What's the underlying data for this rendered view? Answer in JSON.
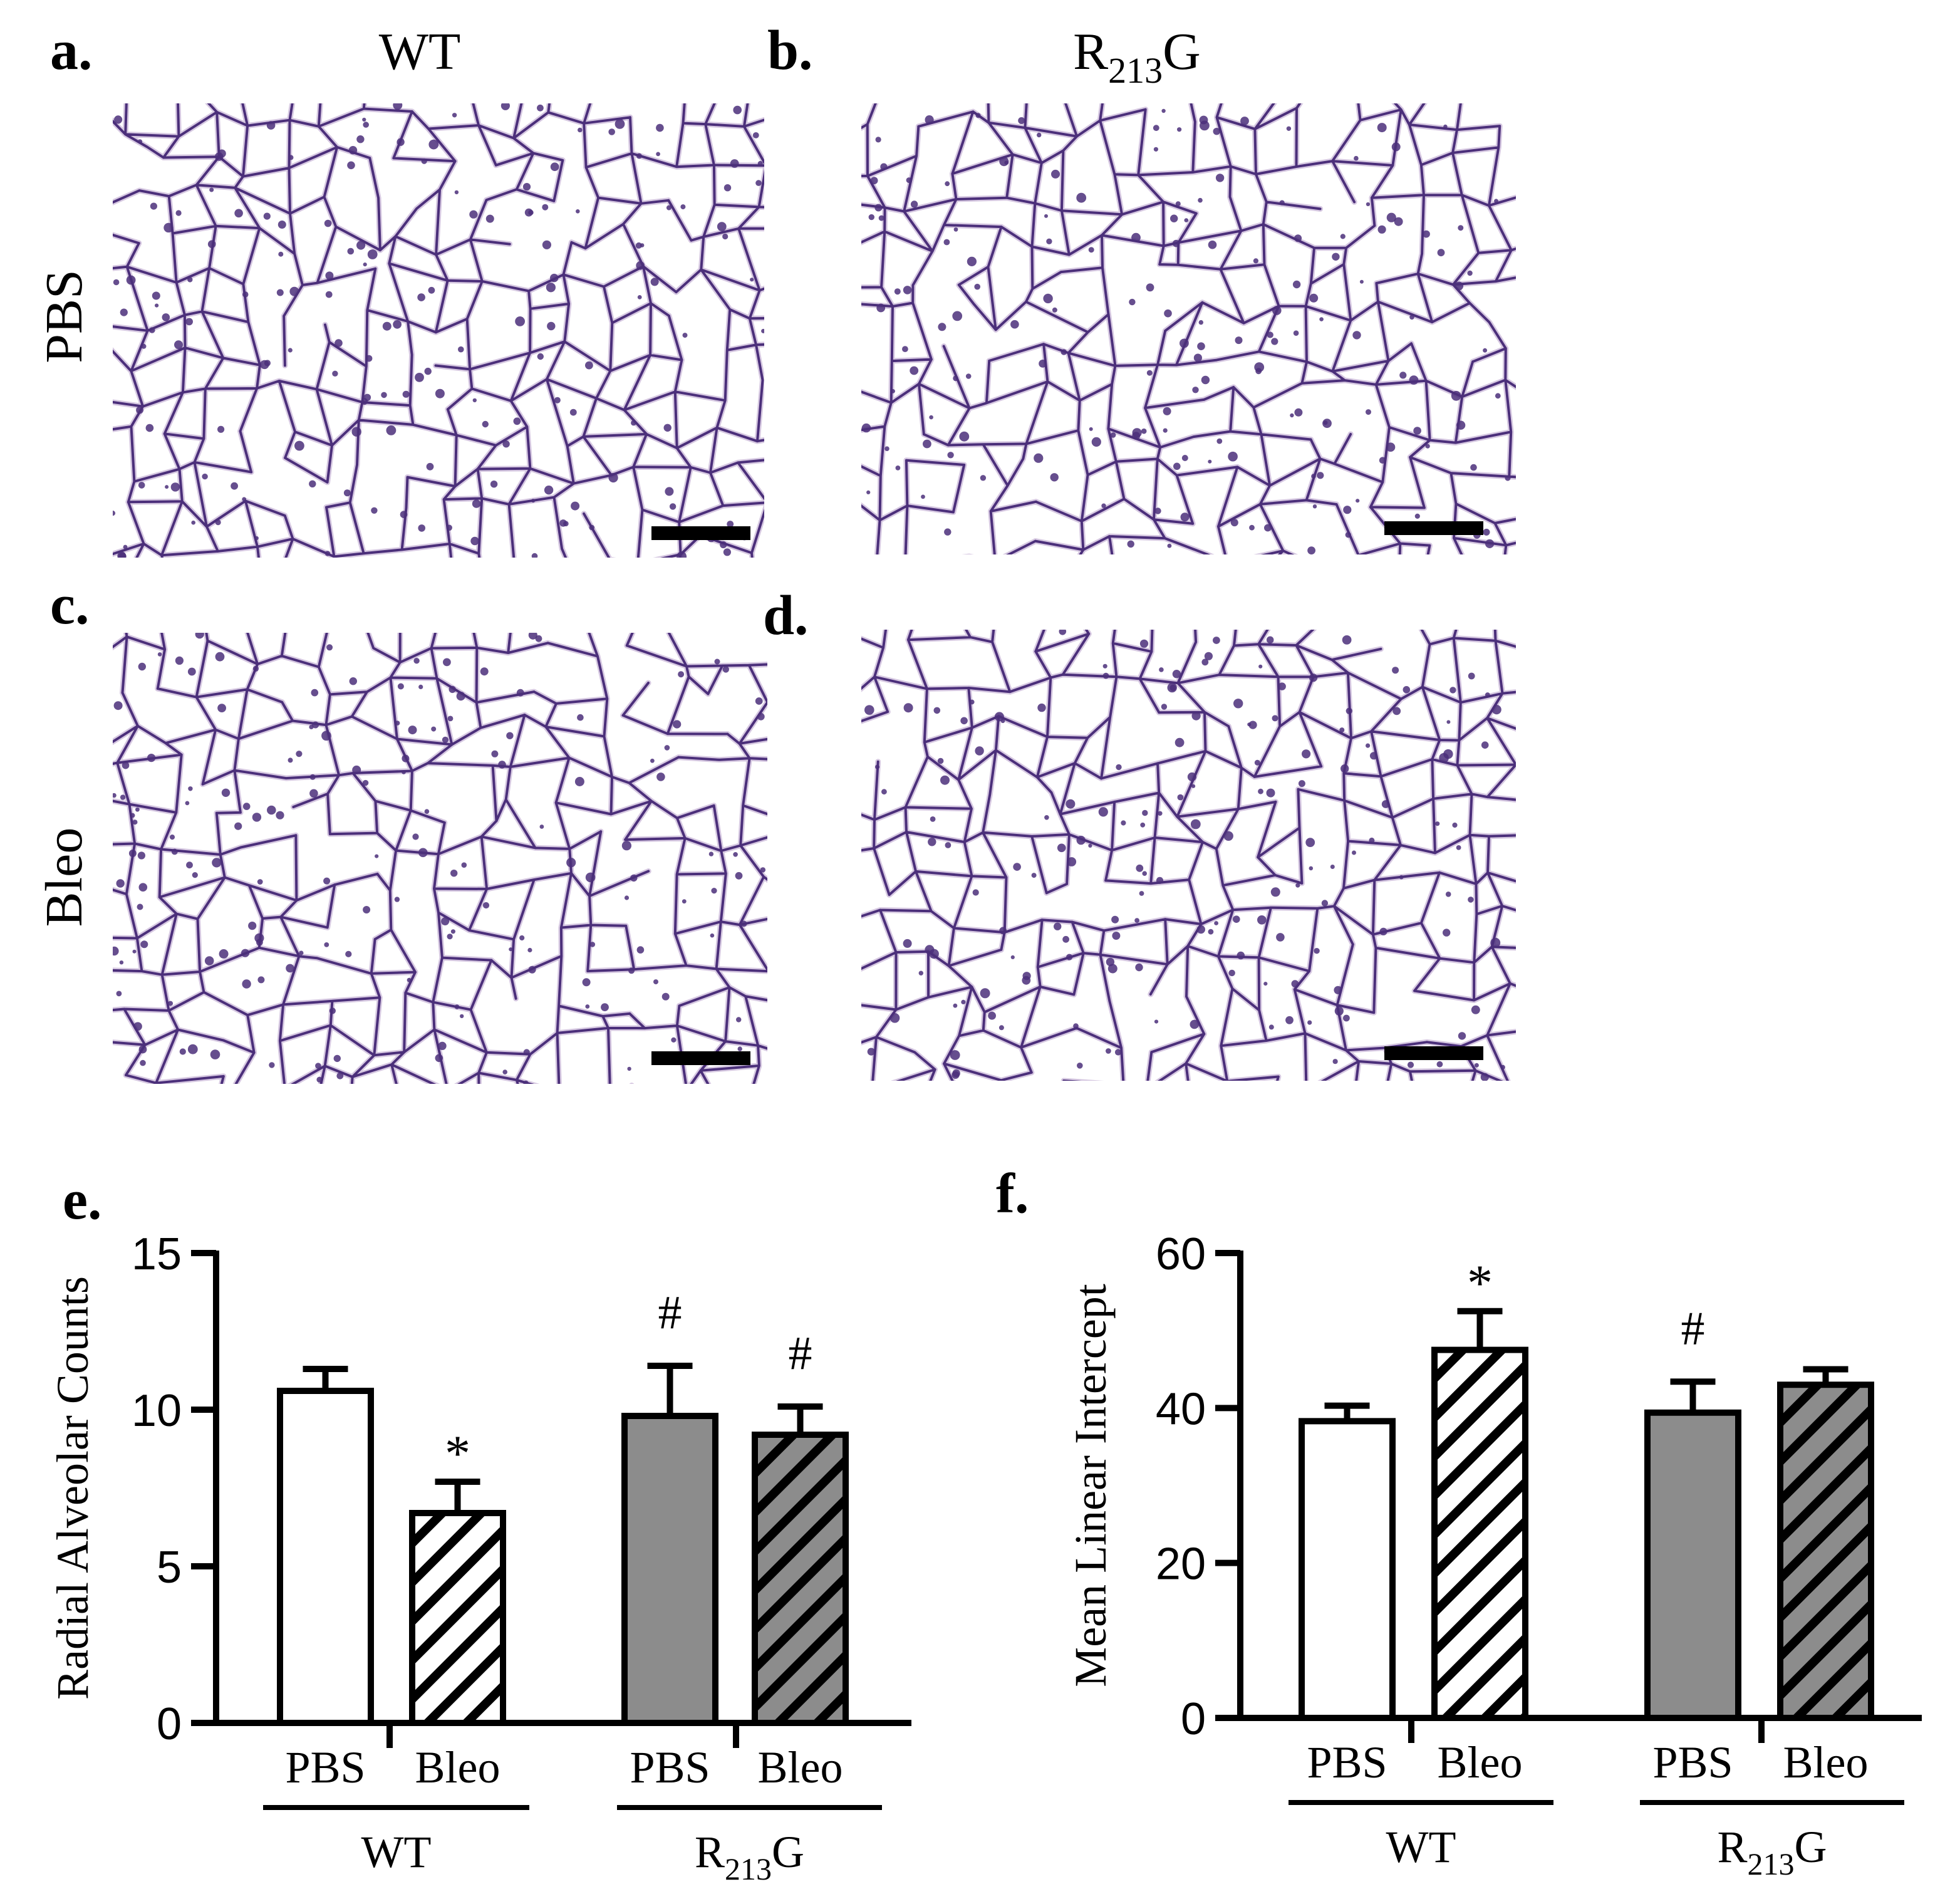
{
  "panel_labels": {
    "a": "a.",
    "b": "b.",
    "c": "c.",
    "d": "d.",
    "e": "e.",
    "f": "f."
  },
  "micrograph_columns": {
    "wt": "WT",
    "mutant_base": "R",
    "mutant_sub": "213",
    "mutant_tail": "G"
  },
  "micrograph_rows": {
    "pbs": "PBS",
    "bleo": "Bleo"
  },
  "micrographs": [
    {
      "panel": "a",
      "genotype": "WT",
      "treatment": "PBS",
      "description_icon": "lung-histology-image"
    },
    {
      "panel": "b",
      "genotype": "R213G",
      "treatment": "PBS",
      "description_icon": "lung-histology-image"
    },
    {
      "panel": "c",
      "genotype": "WT",
      "treatment": "Bleo",
      "description_icon": "lung-histology-image"
    },
    {
      "panel": "d",
      "genotype": "R213G",
      "treatment": "Bleo",
      "description_icon": "lung-histology-image"
    }
  ],
  "colors": {
    "stain": "#4b2f7a",
    "stain_light": "#b59ac9",
    "bar_open": "#ffffff",
    "bar_gray": "#8c8c8c",
    "ink": "#000000"
  },
  "chart_data": [
    {
      "panel": "e",
      "type": "bar",
      "ylabel": "Radial Alveolar Counts",
      "ylim": [
        0,
        15
      ],
      "yticks": [
        0,
        5,
        10,
        15
      ],
      "categories": [
        "PBS",
        "Bleo",
        "PBS",
        "Bleo"
      ],
      "groups": [
        {
          "label_base": "WT",
          "label_sub": "",
          "label_tail": ""
        },
        {
          "label_base": "R",
          "label_sub": "213",
          "label_tail": "G"
        }
      ],
      "bars": [
        {
          "group": 0,
          "treatment": "PBS",
          "value": 10.6,
          "error": 0.7,
          "fill": "white",
          "hatch": false,
          "mark": ""
        },
        {
          "group": 0,
          "treatment": "Bleo",
          "value": 6.7,
          "error": 1.0,
          "fill": "white",
          "hatch": true,
          "mark": "*"
        },
        {
          "group": 1,
          "treatment": "PBS",
          "value": 9.8,
          "error": 1.6,
          "fill": "gray",
          "hatch": false,
          "mark": "#"
        },
        {
          "group": 1,
          "treatment": "Bleo",
          "value": 9.2,
          "error": 0.9,
          "fill": "gray",
          "hatch": true,
          "mark": "#"
        }
      ]
    },
    {
      "panel": "f",
      "type": "bar",
      "ylabel": "Mean Linear Intercept",
      "ylim": [
        0,
        60
      ],
      "yticks": [
        0,
        20,
        40,
        60
      ],
      "categories": [
        "PBS",
        "Bleo",
        "PBS",
        "Bleo"
      ],
      "groups": [
        {
          "label_base": "WT",
          "label_sub": "",
          "label_tail": ""
        },
        {
          "label_base": "R",
          "label_sub": "213",
          "label_tail": "G"
        }
      ],
      "bars": [
        {
          "group": 0,
          "treatment": "PBS",
          "value": 38.3,
          "error": 2.0,
          "fill": "white",
          "hatch": false,
          "mark": ""
        },
        {
          "group": 0,
          "treatment": "Bleo",
          "value": 47.5,
          "error": 5.0,
          "fill": "white",
          "hatch": true,
          "mark": "*"
        },
        {
          "group": 1,
          "treatment": "PBS",
          "value": 39.4,
          "error": 4.0,
          "fill": "gray",
          "hatch": false,
          "mark": "#"
        },
        {
          "group": 1,
          "treatment": "Bleo",
          "value": 43.0,
          "error": 2.0,
          "fill": "gray",
          "hatch": true,
          "mark": ""
        }
      ]
    }
  ]
}
